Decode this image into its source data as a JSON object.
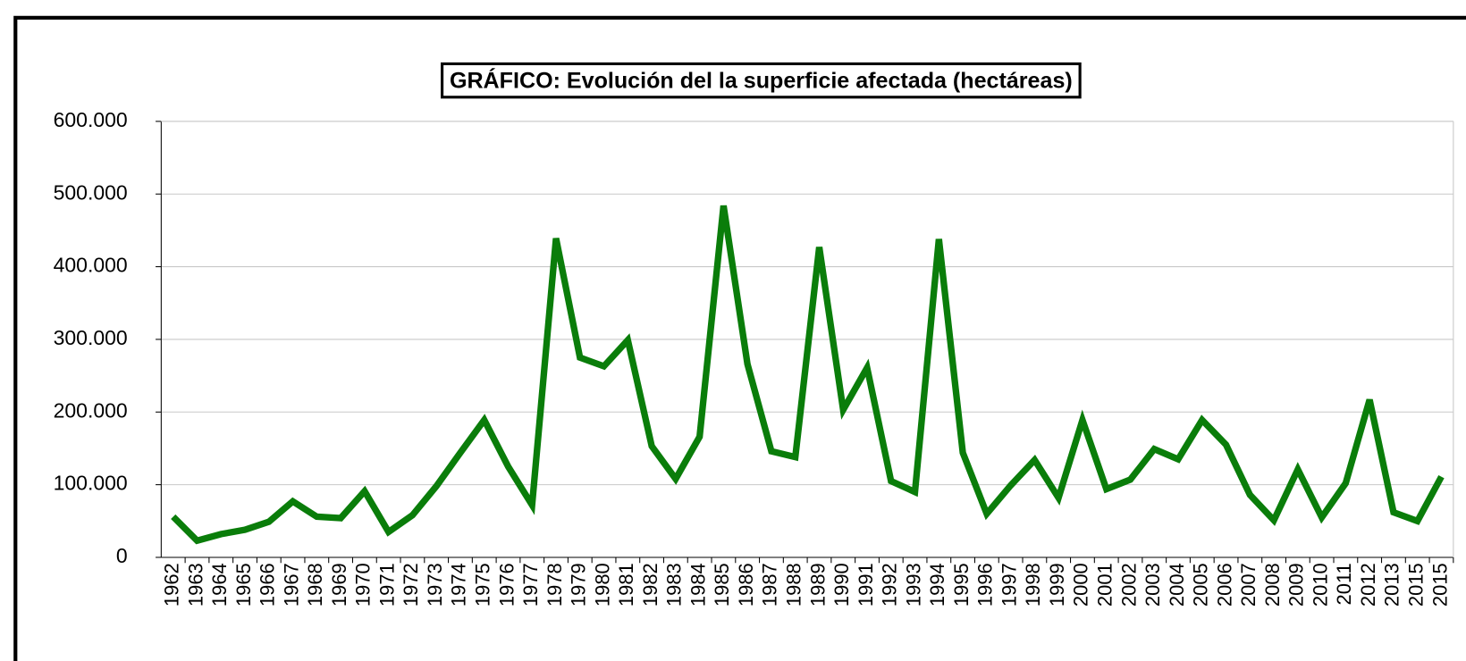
{
  "chart_data": {
    "type": "line",
    "title": "GRÁFICO: Evolución del la superficie afectada (hectáreas)",
    "categories": [
      "1962",
      "1963",
      "1964",
      "1965",
      "1966",
      "1967",
      "1968",
      "1969",
      "1970",
      "1971",
      "1972",
      "1973",
      "1974",
      "1975",
      "1976",
      "1977",
      "1978",
      "1979",
      "1980",
      "1981",
      "1982",
      "1983",
      "1984",
      "1985",
      "1986",
      "1987",
      "1988",
      "1989",
      "1990",
      "1991",
      "1992",
      "1993",
      "1994",
      "1995",
      "1996",
      "1997",
      "1998",
      "1999",
      "2000",
      "2001",
      "2002",
      "2003",
      "2004",
      "2005",
      "2006",
      "2007",
      "2008",
      "2009",
      "2010",
      "2011",
      "2012",
      "2013",
      "2015",
      "2015"
    ],
    "series": [
      {
        "name": "Superficie afectada",
        "color": "#0a7d0a",
        "values": [
          56000,
          23000,
          32000,
          38000,
          49000,
          77000,
          56000,
          54000,
          91000,
          35000,
          58000,
          98000,
          144000,
          189000,
          125000,
          72000,
          439000,
          275000,
          263000,
          299000,
          153000,
          108000,
          166000,
          484000,
          266000,
          146000,
          138000,
          427000,
          203000,
          261000,
          105000,
          90000,
          438000,
          144000,
          60000,
          99000,
          134000,
          82000,
          189000,
          94000,
          107000,
          149000,
          135000,
          189000,
          155000,
          86000,
          51000,
          121000,
          55000,
          102000,
          217000,
          62000,
          50000,
          111000
        ]
      }
    ],
    "ylim": [
      0,
      600000
    ],
    "yticks": [
      0,
      {
        "value": 100000,
        "label": "100.000"
      },
      {
        "value": 200000,
        "label": "200.000"
      },
      {
        "value": 300000,
        "label": "300.000"
      },
      {
        "value": 400000,
        "label": "400.000"
      },
      {
        "value": 500000,
        "label": "500.000"
      },
      {
        "value": 600000,
        "label": "600.000"
      }
    ],
    "grid": true
  }
}
